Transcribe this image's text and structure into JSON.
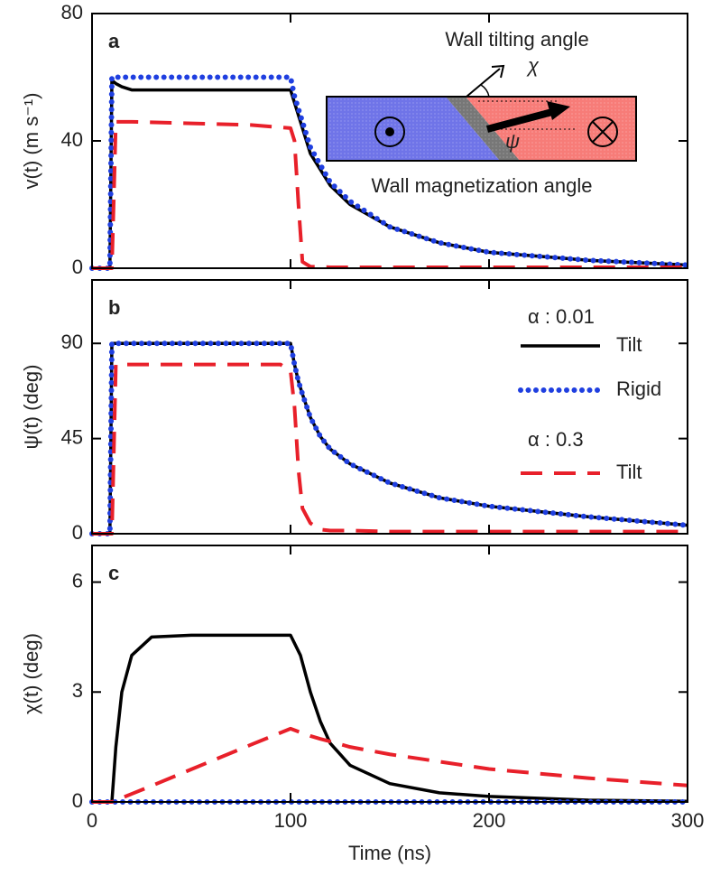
{
  "chart_data": [
    {
      "type": "line",
      "panel_label": "a",
      "y_label": "v(t) (m s⁻¹)",
      "xlim": [
        0,
        300
      ],
      "xticks": [
        0,
        100,
        200,
        300
      ],
      "xtick_labels": false,
      "ylim": [
        0,
        80
      ],
      "yticks": [
        0,
        40,
        80
      ],
      "x": [
        0,
        9,
        10,
        12,
        15,
        20,
        50,
        80,
        100,
        102,
        104,
        106,
        110,
        120,
        130,
        150,
        175,
        200,
        250,
        300
      ],
      "series": [
        {
          "color": "#000000",
          "style": "solid",
          "values": [
            0,
            0,
            59,
            58,
            57,
            56,
            56,
            56,
            56,
            52,
            48,
            44,
            36,
            26,
            20,
            13,
            8,
            5,
            2.5,
            1
          ]
        },
        {
          "color": "#1f3fe0",
          "style": "dotted",
          "values": [
            0,
            0,
            60,
            60,
            60,
            60,
            60,
            60,
            60,
            54,
            50,
            46,
            38,
            27,
            21,
            13,
            8,
            5,
            2.5,
            1
          ]
        },
        {
          "color": "#e8202a",
          "style": "dashed",
          "values": [
            0,
            0,
            0,
            46,
            46,
            46,
            45.5,
            45,
            44,
            40,
            20,
            2,
            0.5,
            0.3,
            0.3,
            0.3,
            0.3,
            0.3,
            0.3,
            0.3
          ]
        }
      ],
      "inset": {
        "top_label": "Wall tilting angle",
        "bottom_label": "Wall magnetization angle",
        "chi": "χ",
        "psi": "ψ"
      }
    },
    {
      "type": "line",
      "panel_label": "b",
      "y_label": "ψ(t) (deg)",
      "xlim": [
        0,
        300
      ],
      "xticks": [
        0,
        100,
        200,
        300
      ],
      "xtick_labels": false,
      "ylim": [
        0,
        120
      ],
      "yticks": [
        0,
        45,
        90
      ],
      "x": [
        0,
        9,
        10,
        12,
        20,
        50,
        80,
        95,
        100,
        102,
        104,
        106,
        110,
        115,
        120,
        130,
        150,
        175,
        200,
        250,
        300
      ],
      "series": [
        {
          "name": "Tilt",
          "color": "#000000",
          "style": "solid",
          "values": [
            0,
            0,
            90,
            90,
            90,
            90,
            90,
            90,
            90,
            80,
            72,
            66,
            55,
            46,
            40,
            33,
            24,
            17,
            13,
            8,
            4
          ]
        },
        {
          "name": "Rigid",
          "color": "#1f3fe0",
          "style": "dotted",
          "values": [
            0,
            0,
            90,
            90,
            90,
            90,
            90,
            90,
            90,
            80,
            72,
            66,
            55,
            46,
            40,
            33,
            24,
            17,
            13,
            8,
            4
          ]
        },
        {
          "name": "Tilt",
          "color": "#e8202a",
          "style": "dashed",
          "values": [
            0,
            0,
            0,
            80,
            80,
            80,
            80,
            80,
            77,
            60,
            30,
            12,
            5,
            2,
            1.5,
            1.5,
            1,
            1,
            1,
            1,
            1
          ]
        }
      ],
      "legend_titles": [
        "α : 0.01",
        "α : 0.3"
      ]
    },
    {
      "type": "line",
      "panel_label": "c",
      "y_label": "χ(t) (deg)",
      "x_label": "Time (ns)",
      "xlim": [
        0,
        300
      ],
      "xticks": [
        0,
        100,
        200,
        300
      ],
      "xtick_labels": true,
      "ylim": [
        0,
        7
      ],
      "yticks": [
        0,
        3,
        6
      ],
      "x": [
        0,
        9,
        10,
        12,
        15,
        20,
        30,
        50,
        80,
        100,
        105,
        110,
        115,
        120,
        130,
        150,
        175,
        200,
        250,
        300
      ],
      "series": [
        {
          "color": "#000000",
          "style": "solid",
          "values": [
            0,
            0,
            0,
            1.5,
            3,
            4,
            4.5,
            4.55,
            4.55,
            4.55,
            4,
            3,
            2.2,
            1.6,
            1,
            0.5,
            0.25,
            0.15,
            0.05,
            0.02
          ]
        },
        {
          "color": "#1f3fe0",
          "style": "dotted",
          "values": [
            0,
            0,
            0,
            0,
            0,
            0,
            0,
            0,
            0,
            0,
            0,
            0,
            0,
            0,
            0,
            0,
            0,
            0,
            0,
            0
          ]
        },
        {
          "color": "#e8202a",
          "style": "dashed",
          "values": [
            0,
            0,
            0,
            0.04,
            0.11,
            0.22,
            0.44,
            0.89,
            1.56,
            2,
            1.9,
            1.8,
            1.72,
            1.65,
            1.5,
            1.3,
            1.1,
            0.9,
            0.65,
            0.45
          ]
        }
      ]
    }
  ]
}
